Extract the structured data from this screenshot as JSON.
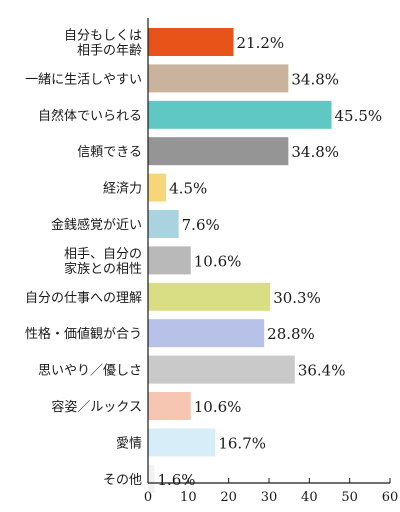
{
  "chart_data": {
    "type": "bar",
    "orientation": "horizontal",
    "categories": [
      [
        "自分もしくは",
        "相手の年齢"
      ],
      [
        "一緒に生活しやすい"
      ],
      [
        "自然体でいられる"
      ],
      [
        "信頼できる"
      ],
      [
        "経済力"
      ],
      [
        "金銭感覚が近い"
      ],
      [
        "相手、自分の",
        "家族との相性"
      ],
      [
        "自分の仕事への理解"
      ],
      [
        "性格・価値観が合う"
      ],
      [
        "思いやり／優しさ"
      ],
      [
        "容姿／ルックス"
      ],
      [
        "愛情"
      ],
      [
        "その他"
      ]
    ],
    "values": [
      21.2,
      34.8,
      45.5,
      34.8,
      4.5,
      7.6,
      10.6,
      30.3,
      28.8,
      36.4,
      10.6,
      16.7,
      1.6
    ],
    "value_labels": [
      "21.2%",
      "34.8%",
      "45.5%",
      "34.8%",
      "4.5%",
      "7.6%",
      "10.6%",
      "30.3%",
      "28.8%",
      "36.4%",
      "10.6%",
      "16.7%",
      "1.6%"
    ],
    "colors": [
      "#e8531a",
      "#c9b39c",
      "#5fc8c4",
      "#959595",
      "#f7d679",
      "#a9d4df",
      "#b9b9b9",
      "#d9dd84",
      "#b8c1e8",
      "#c9c9c9",
      "#f7c6b3",
      "#d7eef8",
      "#f2f2f2"
    ],
    "xlim": [
      0,
      60
    ],
    "xticks": [
      "0",
      "10",
      "20",
      "30",
      "40",
      "50",
      "60"
    ],
    "grid": false,
    "legend": "none",
    "title": "",
    "xlabel": "",
    "ylabel": ""
  }
}
